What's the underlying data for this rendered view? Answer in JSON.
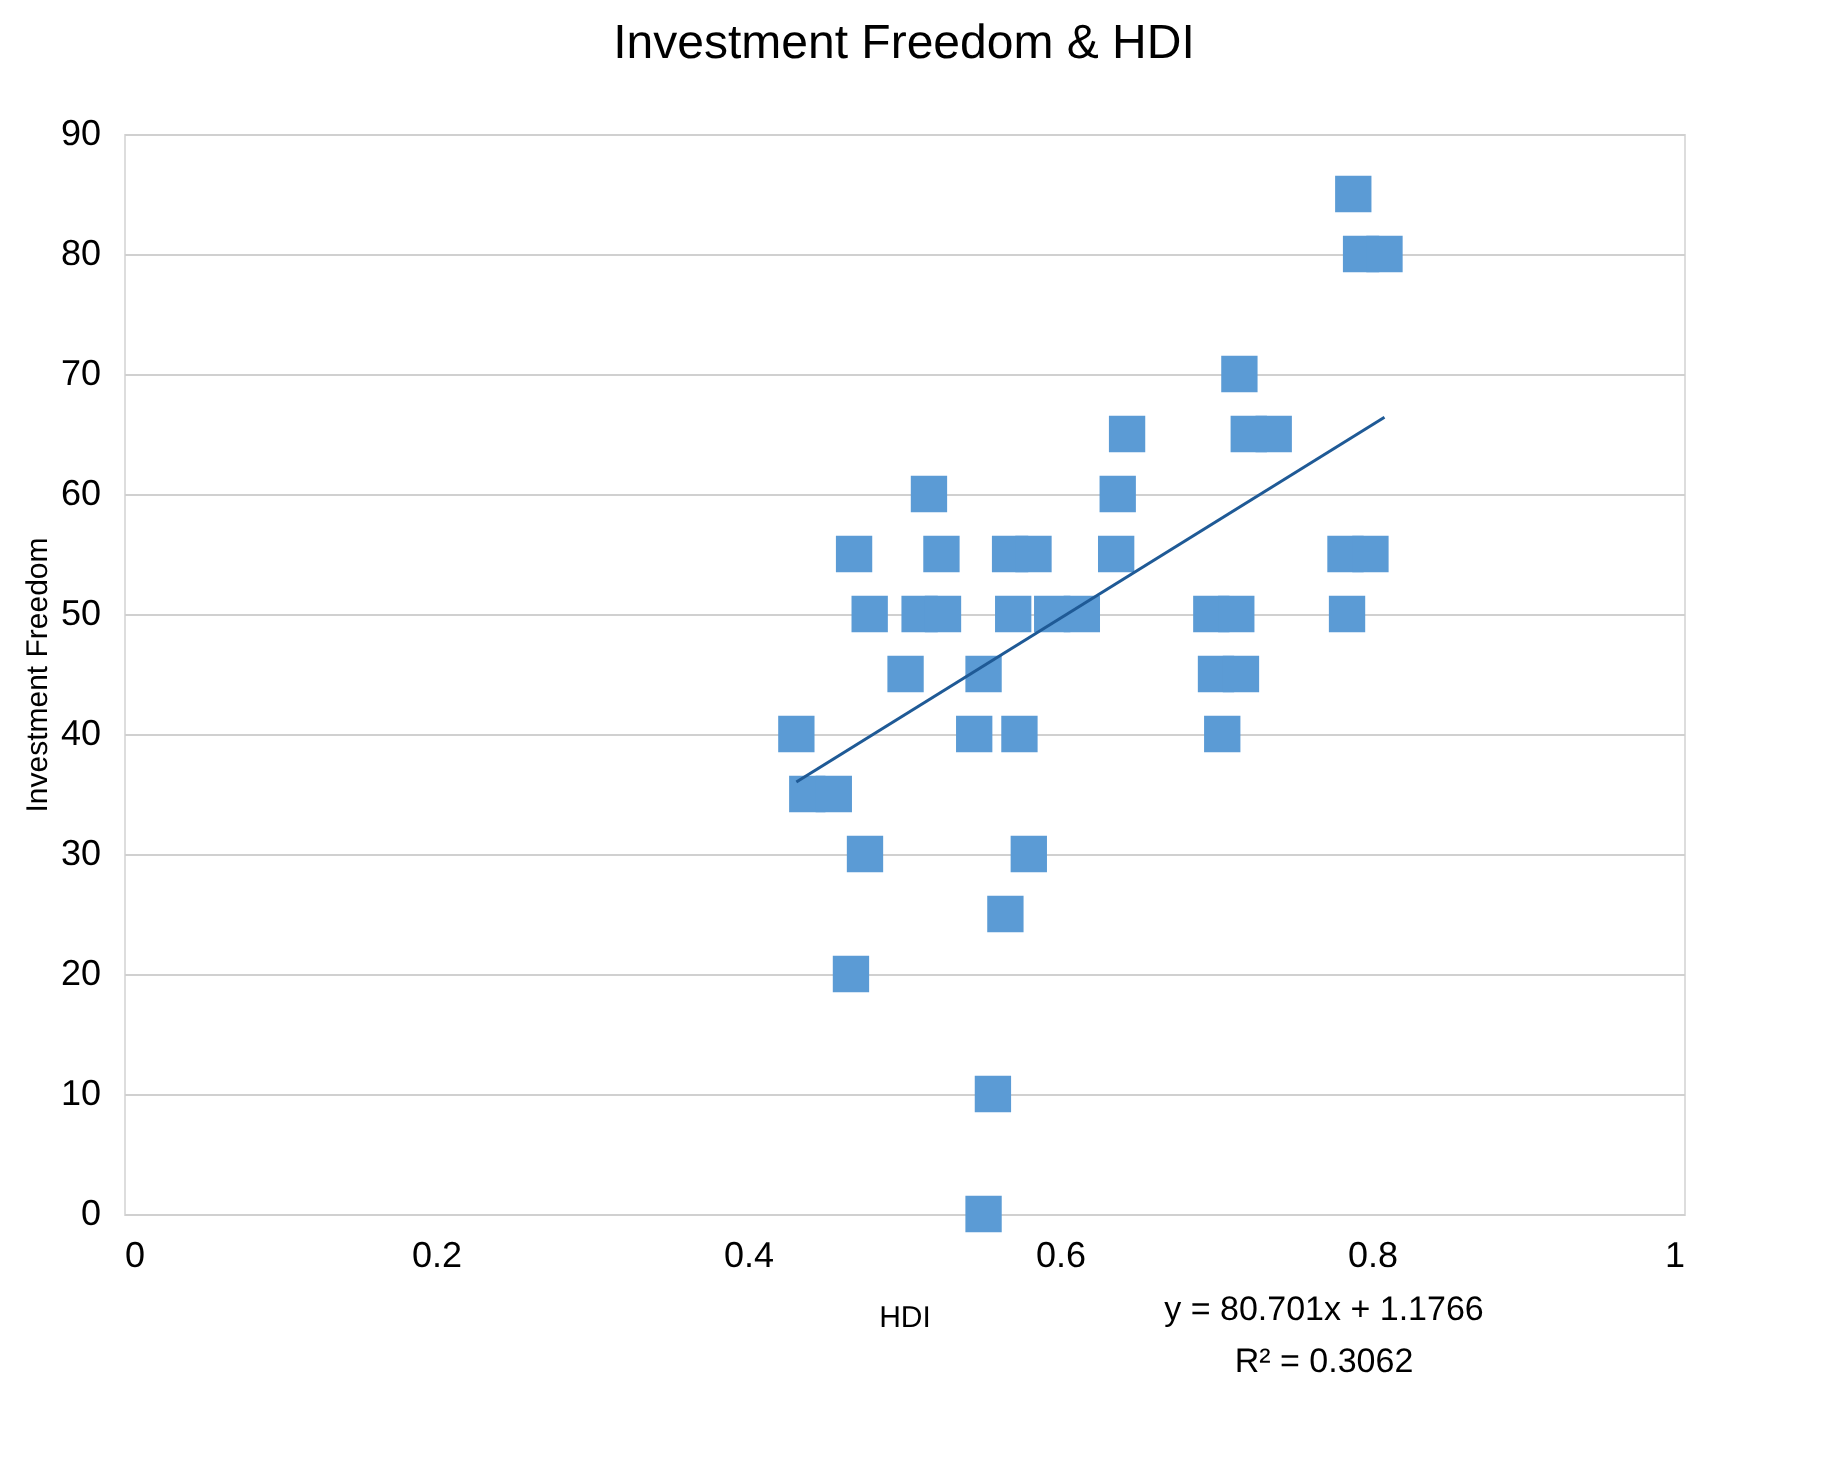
{
  "chart_data": {
    "type": "scatter",
    "title": "Investment Freedom & HDI",
    "xlabel": "HDI",
    "ylabel": "Investment Freedom",
    "xlim": [
      0,
      1
    ],
    "xticks": [
      0,
      0.2,
      0.4,
      0.6,
      0.8,
      1
    ],
    "ylim": [
      0,
      90
    ],
    "yticks": [
      0,
      10,
      20,
      30,
      40,
      50,
      60,
      70,
      80,
      90
    ],
    "grid": "y",
    "series": [
      {
        "marker": "square",
        "color": "#5b9bd5",
        "x": [
          0.431,
          0.438,
          0.455,
          0.468,
          0.478,
          0.501,
          0.475,
          0.466,
          0.516,
          0.524,
          0.51,
          0.525,
          0.551,
          0.545,
          0.574,
          0.568,
          0.583,
          0.57,
          0.595,
          0.614,
          0.637,
          0.636,
          0.58,
          0.565,
          0.557,
          0.551,
          0.643,
          0.715,
          0.721,
          0.737,
          0.697,
          0.713,
          0.7,
          0.716,
          0.704,
          0.783,
          0.799,
          0.784,
          0.788,
          0.793,
          0.808
        ],
        "values": [
          40,
          35,
          35,
          55,
          50,
          45,
          30,
          20,
          60,
          55,
          50,
          50,
          45,
          40,
          40,
          55,
          55,
          50,
          50,
          50,
          60,
          55,
          30,
          25,
          10,
          0,
          65,
          70,
          65,
          65,
          50,
          50,
          45,
          45,
          40,
          55,
          55,
          50,
          85,
          80,
          80
        ]
      },
      {
        "type": "line",
        "marker": "none",
        "color": "#1f5a96",
        "x": [
          0.431,
          0.808
        ],
        "values": [
          36,
          66.4
        ]
      }
    ],
    "annotations": [
      "y = 80.701x + 1.1766",
      "R² = 0.3062"
    ]
  }
}
